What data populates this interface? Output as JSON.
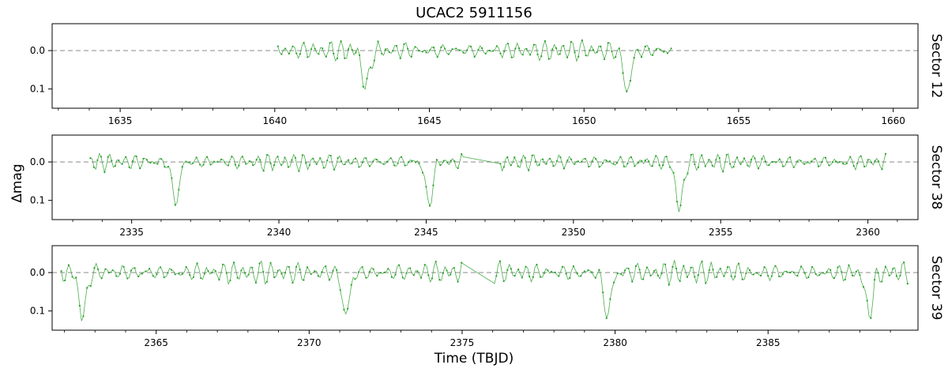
{
  "figure": {
    "title": "UCAC2 5911156",
    "xlabel": "Time (TBJD)",
    "ylabel": "Δmag",
    "line_color": "#2ca02c",
    "reference_line_color": "#aaaaaa"
  },
  "chart_data": [
    {
      "type": "line",
      "panel_label": "Sector 12",
      "xlim": [
        1632.8,
        1660.8
      ],
      "ylim": [
        0.15,
        -0.07
      ],
      "y_inverted": true,
      "x_ticks": [
        1635,
        1640,
        1645,
        1650,
        1655,
        1660
      ],
      "y_ticks": [
        0.0,
        0.1
      ],
      "y_tick_labels": [
        "0.0",
        "0.1"
      ],
      "reference_line": 0.0,
      "data_range": [
        1640.1,
        1652.85
      ],
      "eclipses": [
        {
          "center": 1642.95,
          "depth": 0.095
        },
        {
          "center": 1651.4,
          "depth": 0.105
        }
      ],
      "oscillation": {
        "amplitude": 0.02,
        "period": 0.3
      },
      "series": [
        {
          "values": []
        }
      ]
    },
    {
      "type": "line",
      "panel_label": "Sector 38",
      "xlim": [
        2332.3,
        2361.7
      ],
      "ylim": [
        0.15,
        -0.07
      ],
      "y_inverted": true,
      "x_ticks": [
        2335,
        2340,
        2345,
        2350,
        2355,
        2360
      ],
      "y_ticks": [
        0.0,
        0.1
      ],
      "y_tick_labels": [
        "0.0",
        "0.1"
      ],
      "reference_line": 0.0,
      "data_range": [
        2333.6,
        2360.6
      ],
      "gap": [
        2346.3,
        2347.5
      ],
      "eclipses": [
        {
          "center": 2336.5,
          "depth": 0.105
        },
        {
          "center": 2345.1,
          "depth": 0.11
        },
        {
          "center": 2353.6,
          "depth": 0.125
        }
      ],
      "oscillation": {
        "amplitude": 0.017,
        "period": 0.3
      },
      "series": [
        {
          "values": []
        }
      ]
    },
    {
      "type": "line",
      "panel_label": "Sector 39",
      "xlim": [
        2361.6,
        2389.9
      ],
      "ylim": [
        0.15,
        -0.07
      ],
      "y_inverted": true,
      "x_ticks": [
        2365,
        2370,
        2375,
        2380,
        2385
      ],
      "y_ticks": [
        0.0,
        0.1
      ],
      "y_tick_labels": [
        "0.0",
        "0.1"
      ],
      "reference_line": 0.0,
      "data_range": [
        2361.9,
        2389.6
      ],
      "gap": [
        2375.0,
        2376.0
      ],
      "eclipses": [
        {
          "center": 2362.6,
          "depth": 0.115
        },
        {
          "center": 2371.2,
          "depth": 0.11
        },
        {
          "center": 2379.75,
          "depth": 0.11
        },
        {
          "center": 2388.3,
          "depth": 0.105
        }
      ],
      "oscillation": {
        "amplitude": 0.022,
        "period": 0.3
      },
      "series": [
        {
          "values": []
        }
      ]
    }
  ]
}
